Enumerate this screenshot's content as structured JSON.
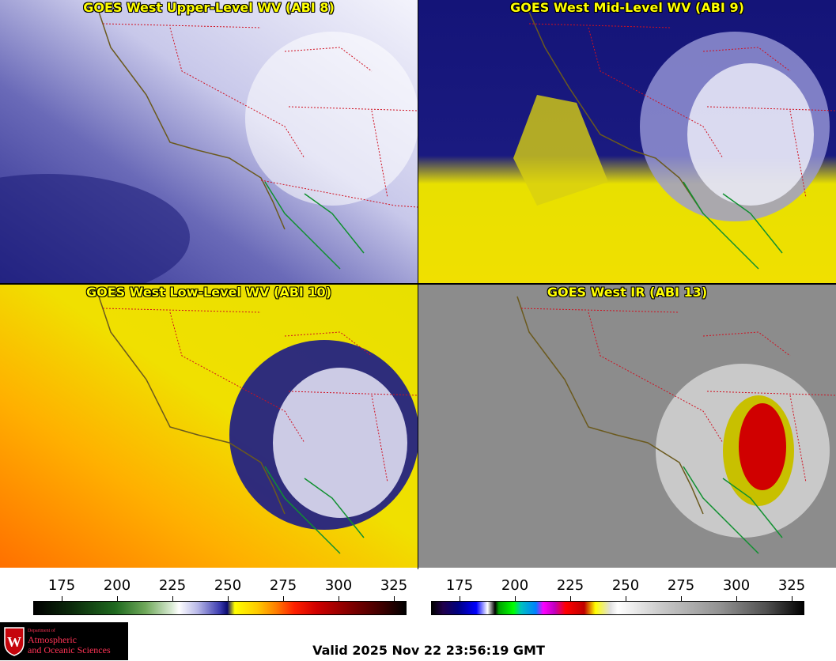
{
  "panels": [
    {
      "title": "GOES West Upper-Level WV (ABI 8)"
    },
    {
      "title": "GOES West Mid-Level WV (ABI 9)"
    },
    {
      "title": "GOES West Low-Level WV (ABI 10)"
    },
    {
      "title": "GOES West IR (ABI 13)"
    }
  ],
  "colorbars": [
    {
      "ticks": [
        "175",
        "200",
        "225",
        "250",
        "275",
        "300",
        "325"
      ]
    },
    {
      "ticks": [
        "175",
        "200",
        "225",
        "250",
        "275",
        "300",
        "325"
      ]
    }
  ],
  "logo": {
    "dept": "Department of",
    "line1": "Atmospheric",
    "line2": "and Oceanic Sciences",
    "crest_letter": "W"
  },
  "valid_time": "Valid 2025 Nov 22 23:56:19 GMT",
  "colors": {
    "coastline": "#6b5a1e",
    "state_border": "#d01020",
    "mexico_coast": "#109030",
    "title_text": "#ffff00"
  }
}
